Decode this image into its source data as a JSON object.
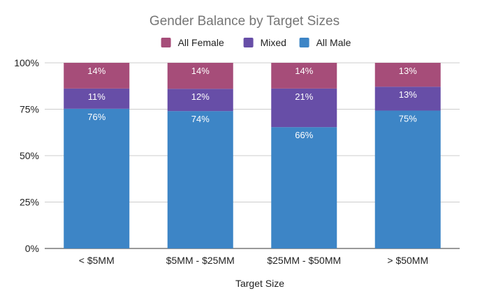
{
  "chart_data": {
    "type": "bar",
    "stacked": "percent",
    "title": "Gender Balance by Target Sizes",
    "xlabel": "Target Size",
    "ylabel": "",
    "categories": [
      "< $5MM",
      "$5MM - $25MM",
      "$25MM - $50MM",
      "> $50MM"
    ],
    "series": [
      {
        "name": "All Male",
        "color": "#3d85c6",
        "values": [
          76,
          74,
          66,
          75
        ],
        "labels": [
          "76%",
          "74%",
          "66%",
          "75%"
        ]
      },
      {
        "name": "Mixed",
        "color": "#674ea7",
        "values": [
          11,
          12,
          21,
          13
        ],
        "labels": [
          "11%",
          "12%",
          "21%",
          "13%"
        ]
      },
      {
        "name": "All Female",
        "color": "#a64d79",
        "values": [
          14,
          14,
          14,
          13
        ],
        "labels": [
          "14%",
          "14%",
          "14%",
          "13%"
        ]
      }
    ],
    "legend_order": [
      "All Female",
      "Mixed",
      "All Male"
    ],
    "ylim": [
      0,
      100
    ],
    "yticks": [
      0,
      25,
      50,
      75,
      100
    ],
    "ytick_labels": [
      "0%",
      "25%",
      "50%",
      "75%",
      "100%"
    ],
    "grid": true,
    "legend_position": "top"
  }
}
